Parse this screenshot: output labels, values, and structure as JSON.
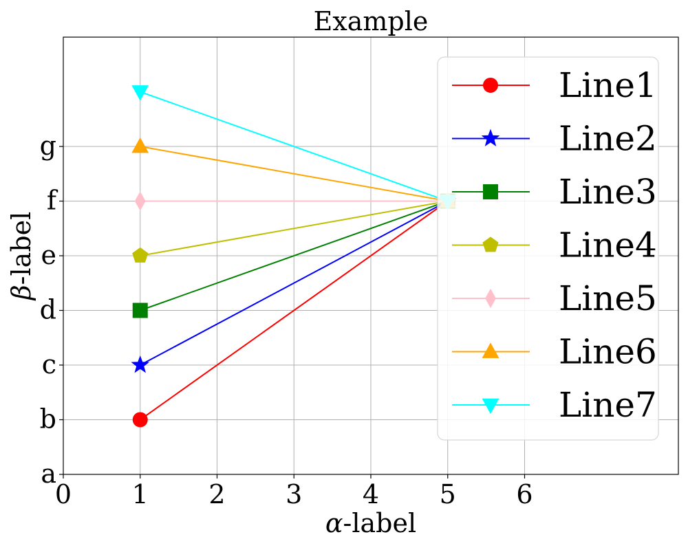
{
  "chart_data": {
    "type": "line",
    "title": "Example",
    "xlabel": {
      "symbol": "α",
      "text": "-label"
    },
    "ylabel": {
      "symbol": "β",
      "text": "-label"
    },
    "xlim": [
      0,
      8
    ],
    "ylim": [
      0,
      8
    ],
    "xticks": [
      0,
      1,
      2,
      3,
      4,
      5,
      6
    ],
    "xtick_labels": [
      "0",
      "1",
      "2",
      "3",
      "4",
      "5",
      "6"
    ],
    "yticks": [
      0,
      1,
      2,
      3,
      4,
      5,
      6
    ],
    "ytick_labels": [
      "a",
      "b",
      "c",
      "d",
      "e",
      "f",
      "g"
    ],
    "grid": true,
    "legend": {
      "placement": "top-right"
    },
    "series": [
      {
        "name": "Line1",
        "color": "#ff0000",
        "marker": "circle",
        "x": [
          1,
          5
        ],
        "y": [
          1,
          5
        ]
      },
      {
        "name": "Line2",
        "color": "#0000ff",
        "marker": "star",
        "x": [
          1,
          5
        ],
        "y": [
          2,
          5
        ]
      },
      {
        "name": "Line3",
        "color": "#008000",
        "marker": "square",
        "x": [
          1,
          5
        ],
        "y": [
          3,
          5
        ]
      },
      {
        "name": "Line4",
        "color": "#bfbf00",
        "marker": "pentagon",
        "x": [
          1,
          5
        ],
        "y": [
          4,
          5
        ]
      },
      {
        "name": "Line5",
        "color": "#ffc0cb",
        "marker": "thin-diamond",
        "x": [
          1,
          5
        ],
        "y": [
          5,
          5
        ]
      },
      {
        "name": "Line6",
        "color": "#ffa500",
        "marker": "triangle-up",
        "x": [
          1,
          5
        ],
        "y": [
          6,
          5
        ]
      },
      {
        "name": "Line7",
        "color": "#00ffff",
        "marker": "triangle-down",
        "x": [
          1,
          5
        ],
        "y": [
          7,
          5
        ]
      }
    ]
  }
}
